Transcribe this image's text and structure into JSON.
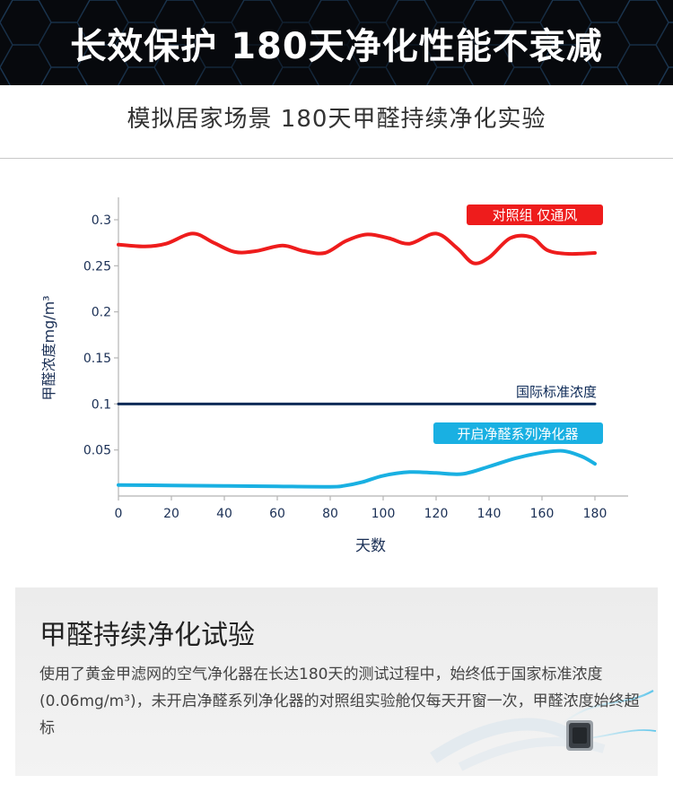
{
  "banner": {
    "title": "长效保护 180天净化性能不衰减"
  },
  "subtitle": "模拟居家场景 180天甲醛持续净化实验",
  "colors": {
    "control": "#ee1c1c",
    "standard": "#0d2a57",
    "purifier": "#19b0e2",
    "axis_text": "#1a2f55"
  },
  "chart_data": {
    "type": "line",
    "xlabel": "天数",
    "ylabel": "甲醛浓度mg/m³",
    "xlim": [
      0,
      180
    ],
    "ylim": [
      0,
      0.3
    ],
    "x_ticks": [
      "0",
      "20",
      "40",
      "60",
      "80",
      "100",
      "120",
      "140",
      "160",
      "180"
    ],
    "y_ticks": [
      "0.05",
      "0.1",
      "0.15",
      "0.2",
      "0.25",
      "0.3"
    ],
    "grid": false,
    "series": [
      {
        "name": "对照组 仅通风",
        "color": "#ee1c1c",
        "x": [
          0,
          10,
          18,
          28,
          36,
          44,
          52,
          62,
          70,
          78,
          86,
          94,
          102,
          110,
          120,
          128,
          134,
          140,
          148,
          156,
          162,
          170,
          180
        ],
        "y": [
          0.273,
          0.271,
          0.274,
          0.285,
          0.275,
          0.265,
          0.266,
          0.272,
          0.266,
          0.264,
          0.277,
          0.284,
          0.28,
          0.274,
          0.285,
          0.269,
          0.253,
          0.259,
          0.28,
          0.281,
          0.267,
          0.263,
          0.264
        ]
      },
      {
        "name": "国际标准浓度",
        "color": "#0d2a57",
        "x": [
          0,
          180
        ],
        "y": [
          0.1,
          0.1
        ]
      },
      {
        "name": "开启净醛系列净化器",
        "color": "#19b0e2",
        "x": [
          0,
          20,
          40,
          60,
          80,
          85,
          92,
          100,
          110,
          120,
          130,
          140,
          150,
          160,
          168,
          175,
          180
        ],
        "y": [
          0.012,
          0.0115,
          0.011,
          0.0105,
          0.01,
          0.011,
          0.015,
          0.022,
          0.026,
          0.025,
          0.024,
          0.032,
          0.041,
          0.047,
          0.049,
          0.043,
          0.035
        ]
      }
    ],
    "annotations": [
      {
        "text": "对照组 仅通风",
        "series": 0
      },
      {
        "text": "国际标准浓度",
        "series": 1
      },
      {
        "text": "开启净醛系列净化器",
        "series": 2
      }
    ]
  },
  "info": {
    "title": "甲醛持续净化试验",
    "text": "使用了黄金甲滤网的空气净化器在长达180天的测试过程中，始终低于国家标准浓度(0.06mg/m³)，未开启净醛系列净化器的对照组实验舱仅每天开窗一次，甲醛浓度始终超标"
  }
}
